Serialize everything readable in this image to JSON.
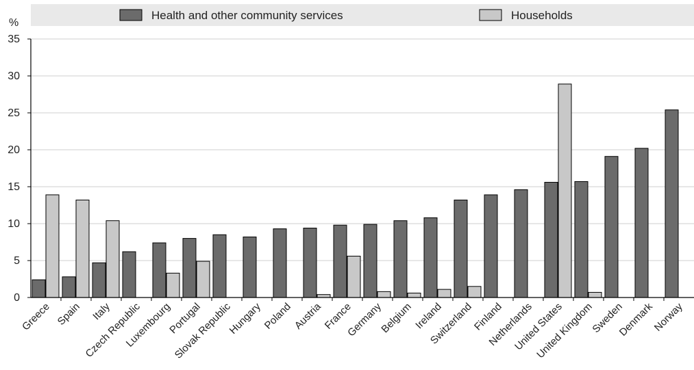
{
  "chart_data": {
    "type": "bar",
    "ylabel": "%",
    "ylim": [
      0,
      35
    ],
    "yticks": [
      0,
      5,
      10,
      15,
      20,
      25,
      30,
      35
    ],
    "grid": true,
    "legend_position": "top",
    "categories": [
      "Greece",
      "Spain",
      "Italy",
      "Czech Republic",
      "Luxembourg",
      "Portugal",
      "Slovak Republic",
      "Hungary",
      "Poland",
      "Austria",
      "France",
      "Germany",
      "Belgium",
      "Ireland",
      "Switzerland",
      "Finland",
      "Netherlands",
      "United States",
      "United Kingdom",
      "Sweden",
      "Denmark",
      "Norway"
    ],
    "series": [
      {
        "name": "Health and other community services",
        "color": "#6b6b6b",
        "values": [
          2.4,
          2.8,
          4.7,
          6.2,
          7.4,
          8.0,
          8.5,
          8.2,
          9.3,
          9.4,
          9.8,
          9.9,
          10.4,
          10.8,
          13.2,
          13.9,
          14.6,
          15.6,
          15.7,
          19.1,
          20.2,
          25.4
        ]
      },
      {
        "name": "Households",
        "color": "#c8c8c8",
        "values": [
          13.9,
          13.2,
          10.4,
          null,
          3.3,
          4.9,
          null,
          null,
          null,
          0.4,
          5.6,
          0.8,
          0.6,
          1.1,
          1.5,
          null,
          null,
          28.9,
          0.7,
          null,
          null,
          null
        ]
      }
    ]
  }
}
